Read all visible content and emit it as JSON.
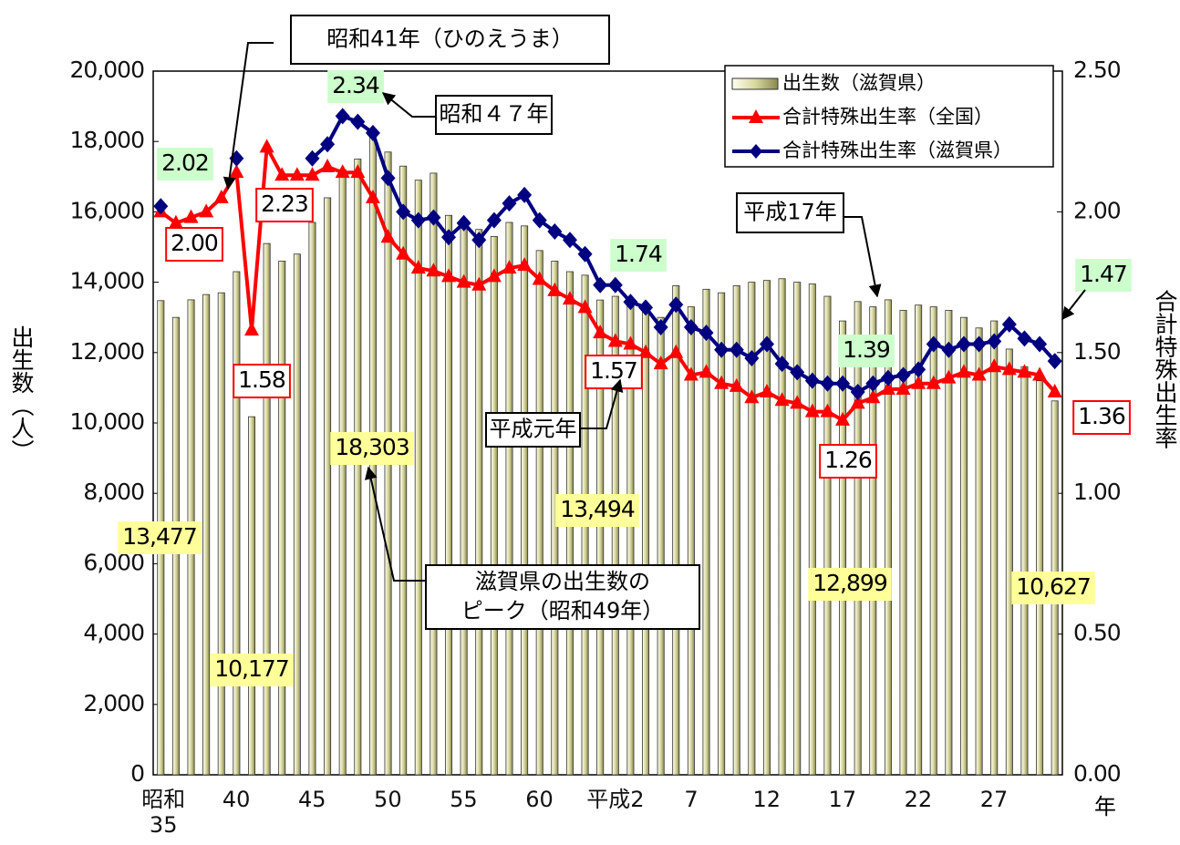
{
  "chart_data": {
    "type": "bar-line",
    "categories": [
      "昭和35",
      null,
      null,
      null,
      null,
      "40",
      null,
      null,
      null,
      null,
      "45",
      null,
      null,
      null,
      null,
      "50",
      null,
      null,
      null,
      null,
      "55",
      null,
      null,
      null,
      null,
      "60",
      null,
      null,
      null,
      null,
      "平成2",
      null,
      null,
      null,
      null,
      "7",
      null,
      null,
      null,
      null,
      "12",
      null,
      null,
      null,
      null,
      "17",
      null,
      null,
      null,
      null,
      "22",
      null,
      null,
      null,
      null,
      "27",
      null,
      null,
      null,
      null
    ],
    "x_label": "年",
    "y_label": "出生数（人）",
    "y2_label": "合計特殊出生率",
    "ylim": [
      0,
      20000
    ],
    "yticks": [
      {
        "value": 0,
        "label": "0"
      },
      {
        "value": 2000,
        "label": "2,000"
      },
      {
        "value": 4000,
        "label": "4,000"
      },
      {
        "value": 6000,
        "label": "6,000"
      },
      {
        "value": 8000,
        "label": "8,000"
      },
      {
        "value": 10000,
        "label": "10,000"
      },
      {
        "value": 12000,
        "label": "12,000"
      },
      {
        "value": 14000,
        "label": "14,000"
      },
      {
        "value": 16000,
        "label": "16,000"
      },
      {
        "value": 18000,
        "label": "18,000"
      },
      {
        "value": 20000,
        "label": "20,000"
      }
    ],
    "y2lim": [
      0,
      2.5
    ],
    "y2ticks": [
      {
        "value": 0,
        "label": "0.00"
      },
      {
        "value": 0.5,
        "label": "0.50"
      },
      {
        "value": 1,
        "label": "1.00"
      },
      {
        "value": 1.5,
        "label": "1.50"
      },
      {
        "value": 2,
        "label": "2.00"
      },
      {
        "value": 2.5,
        "label": "2.50"
      }
    ],
    "series": [
      {
        "name": "出生数（滋賀県）",
        "type": "bar",
        "color": "#c8c888",
        "values": [
          13477,
          13000,
          13500,
          13650,
          13700,
          14300,
          10177,
          15100,
          14600,
          14800,
          15700,
          16400,
          17200,
          17500,
          18303,
          17700,
          17300,
          16900,
          17100,
          15900,
          15700,
          15500,
          15300,
          15700,
          15600,
          14900,
          14600,
          14300,
          14200,
          13494,
          13600,
          13400,
          13200,
          13000,
          13900,
          13300,
          13800,
          13700,
          13900,
          14000,
          14050,
          14100,
          14000,
          13950,
          13600,
          12899,
          13450,
          13300,
          13500,
          13200,
          13350,
          13300,
          13200,
          13000,
          12700,
          12900,
          12100,
          11600,
          11200,
          10627
        ],
        "value_labels": [
          "13,477",
          null,
          null,
          null,
          null,
          null,
          "10,177",
          null,
          null,
          null,
          null,
          null,
          null,
          null,
          "18,303",
          null,
          null,
          null,
          null,
          null,
          null,
          null,
          null,
          null,
          null,
          null,
          null,
          null,
          null,
          "13,494",
          null,
          null,
          null,
          null,
          null,
          null,
          null,
          null,
          null,
          null,
          null,
          null,
          null,
          null,
          null,
          "12,899",
          null,
          null,
          null,
          null,
          null,
          null,
          null,
          null,
          null,
          null,
          null,
          null,
          null,
          "10,627"
        ]
      },
      {
        "name": "合計特殊出生率（全国）",
        "type": "line",
        "axis": "y2",
        "color": "#ff0000",
        "marker": "triangle",
        "values": [
          2.0,
          1.96,
          1.98,
          2.0,
          2.05,
          2.14,
          1.58,
          2.23,
          2.13,
          2.13,
          2.13,
          2.16,
          2.14,
          2.14,
          2.05,
          1.91,
          1.85,
          1.8,
          1.79,
          1.77,
          1.75,
          1.74,
          1.77,
          1.8,
          1.81,
          1.76,
          1.72,
          1.69,
          1.66,
          1.57,
          1.54,
          1.53,
          1.5,
          1.46,
          1.5,
          1.42,
          1.43,
          1.39,
          1.38,
          1.34,
          1.36,
          1.33,
          1.32,
          1.29,
          1.29,
          1.26,
          1.32,
          1.34,
          1.37,
          1.37,
          1.39,
          1.39,
          1.41,
          1.43,
          1.42,
          1.45,
          1.44,
          1.43,
          1.42,
          1.36
        ],
        "value_labels": [
          "2.00",
          null,
          null,
          null,
          null,
          null,
          "1.58",
          "2.23",
          null,
          null,
          null,
          null,
          null,
          null,
          null,
          null,
          null,
          null,
          null,
          null,
          null,
          null,
          null,
          null,
          null,
          null,
          null,
          null,
          null,
          "1.57",
          null,
          null,
          null,
          null,
          null,
          null,
          null,
          null,
          null,
          null,
          null,
          null,
          null,
          null,
          null,
          "1.26",
          null,
          null,
          null,
          null,
          null,
          null,
          null,
          null,
          null,
          null,
          null,
          null,
          null,
          "1.36"
        ]
      },
      {
        "name": "合計特殊出生率（滋賀県）",
        "type": "line",
        "axis": "y2",
        "color": "#000080",
        "marker": "diamond",
        "values": [
          2.02,
          null,
          null,
          null,
          null,
          2.19,
          null,
          null,
          null,
          null,
          2.19,
          2.24,
          2.34,
          2.32,
          2.28,
          2.12,
          2.0,
          1.97,
          1.98,
          1.91,
          1.96,
          1.9,
          1.97,
          2.03,
          2.06,
          1.97,
          1.93,
          1.9,
          1.85,
          1.74,
          1.74,
          1.68,
          1.66,
          1.59,
          1.67,
          1.59,
          1.57,
          1.51,
          1.51,
          1.48,
          1.53,
          1.46,
          1.43,
          1.4,
          1.39,
          1.39,
          1.36,
          1.39,
          1.41,
          1.42,
          1.44,
          1.53,
          1.51,
          1.53,
          1.53,
          1.54,
          1.6,
          1.55,
          1.53,
          1.47
        ],
        "value_labels": [
          "2.02",
          null,
          null,
          null,
          null,
          null,
          null,
          null,
          null,
          null,
          null,
          null,
          "2.34",
          null,
          null,
          null,
          null,
          null,
          null,
          null,
          null,
          null,
          null,
          null,
          null,
          null,
          null,
          null,
          null,
          "1.74",
          null,
          null,
          null,
          null,
          null,
          null,
          null,
          null,
          null,
          null,
          null,
          null,
          null,
          null,
          null,
          "1.39",
          null,
          null,
          null,
          null,
          null,
          null,
          null,
          null,
          null,
          null,
          null,
          null,
          null,
          "1.47"
        ]
      }
    ],
    "annotations": [
      [
        "昭和41年（ひのえうま）"
      ],
      [
        "昭和４７年"
      ],
      [
        "平成17年"
      ],
      [
        "平成元年"
      ],
      [
        "滋賀県の出生数の",
        "ピーク（昭和49年）"
      ]
    ],
    "legend": "top-right"
  }
}
